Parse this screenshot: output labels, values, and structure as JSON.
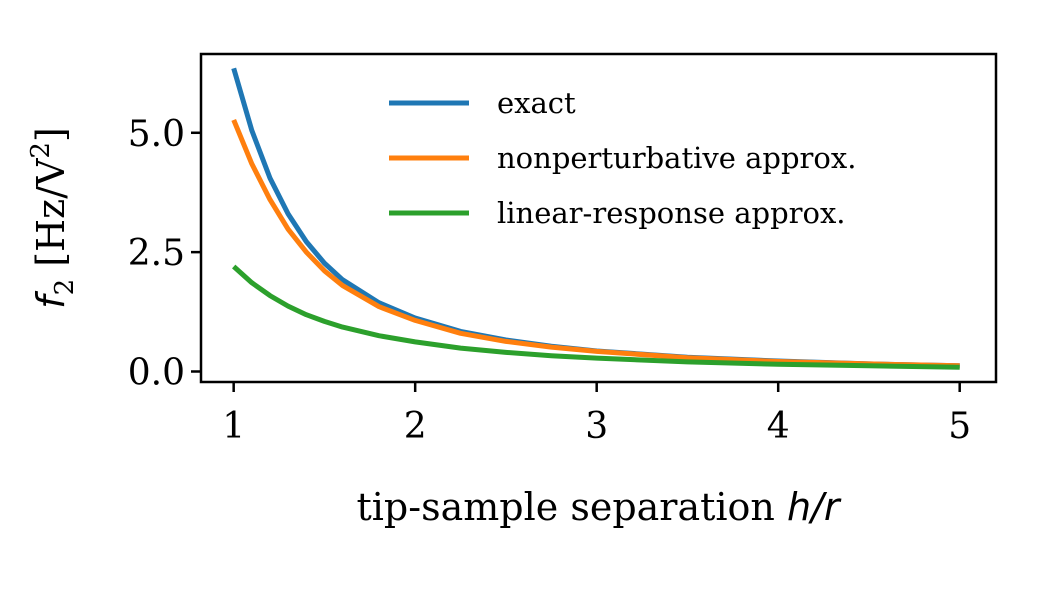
{
  "chart_data": {
    "type": "line",
    "xlabel": {
      "text": "tip-sample separation ",
      "math": "h/r"
    },
    "ylabel": {
      "symbol": "f",
      "subscript": "2",
      "unit_open": " [Hz/V",
      "unit_sup": "2",
      "unit_close": "]"
    },
    "xlim": [
      0.82,
      5.2
    ],
    "ylim": [
      -0.22,
      6.65
    ],
    "xticks": [
      1,
      2,
      3,
      4,
      5
    ],
    "xtick_labels": [
      "1",
      "2",
      "3",
      "4",
      "5"
    ],
    "yticks": [
      0.0,
      2.5,
      5.0
    ],
    "ytick_labels": [
      "0.0",
      "2.5",
      "5.0"
    ],
    "grid": false,
    "legend_position": "upper-right",
    "series": [
      {
        "name": "exact",
        "color": "#1f77b4",
        "x": [
          1.0,
          1.1,
          1.2,
          1.3,
          1.4,
          1.5,
          1.6,
          1.8,
          2.0,
          2.25,
          2.5,
          2.75,
          3.0,
          3.5,
          4.0,
          4.5,
          5.0
        ],
        "y": [
          6.35,
          5.05,
          4.05,
          3.3,
          2.72,
          2.27,
          1.92,
          1.44,
          1.12,
          0.84,
          0.66,
          0.53,
          0.43,
          0.3,
          0.22,
          0.16,
          0.12
        ]
      },
      {
        "name": "nonperturbative approx.",
        "color": "#ff7f0e",
        "x": [
          1.0,
          1.1,
          1.2,
          1.3,
          1.4,
          1.5,
          1.6,
          1.8,
          2.0,
          2.25,
          2.5,
          2.75,
          3.0,
          3.5,
          4.0,
          4.5,
          5.0
        ],
        "y": [
          5.27,
          4.35,
          3.6,
          2.98,
          2.5,
          2.11,
          1.8,
          1.36,
          1.07,
          0.8,
          0.63,
          0.51,
          0.42,
          0.29,
          0.21,
          0.16,
          0.12
        ]
      },
      {
        "name": "linear-response approx.",
        "color": "#2ca02c",
        "x": [
          1.0,
          1.1,
          1.2,
          1.3,
          1.4,
          1.5,
          1.6,
          1.8,
          2.0,
          2.25,
          2.5,
          2.75,
          3.0,
          3.5,
          4.0,
          4.5,
          5.0
        ],
        "y": [
          2.2,
          1.86,
          1.59,
          1.37,
          1.19,
          1.05,
          0.93,
          0.75,
          0.62,
          0.49,
          0.4,
          0.33,
          0.28,
          0.2,
          0.15,
          0.12,
          0.09
        ]
      }
    ]
  }
}
